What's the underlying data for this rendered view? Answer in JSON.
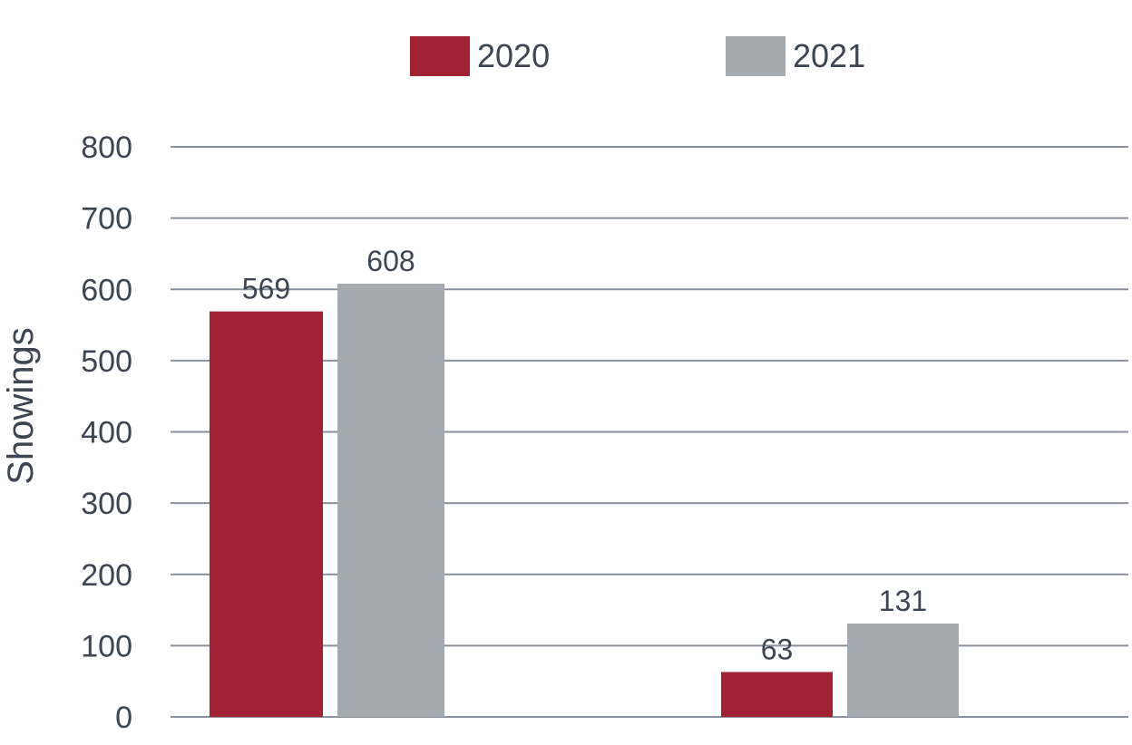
{
  "chart_data": {
    "type": "bar",
    "title": "",
    "xlabel": "",
    "ylabel": "Showings",
    "ylim": [
      0,
      800
    ],
    "yticks": [
      0,
      100,
      200,
      300,
      400,
      500,
      600,
      700,
      800
    ],
    "grid": true,
    "legend_position": "top-center",
    "categories": [
      "",
      ""
    ],
    "series": [
      {
        "name": "2020",
        "color": "#a12232",
        "values": [
          569,
          63
        ]
      },
      {
        "name": "2021",
        "color": "#a3abb1",
        "values": [
          608,
          131
        ]
      }
    ]
  }
}
